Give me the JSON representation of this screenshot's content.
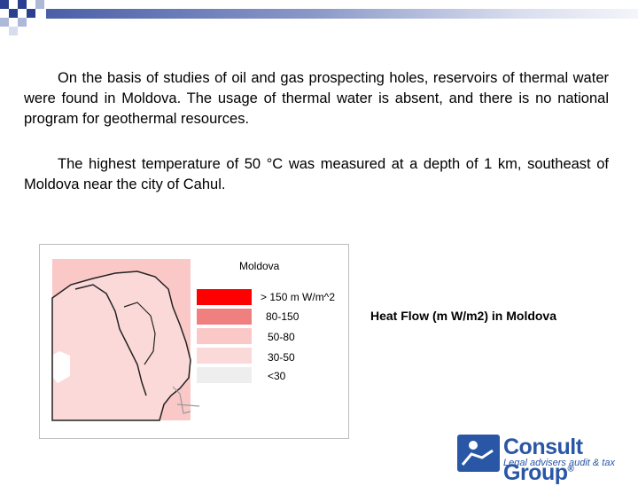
{
  "colors": {
    "accent_blue": "#2a56a6",
    "bar_dark": "#4a5fa8",
    "legend_high": "#ff0000",
    "legend_80_150": "#f08080",
    "legend_50_80": "#fbc8c8",
    "legend_30_50": "#fbd9d9",
    "legend_lt30": "#eeeeee"
  },
  "text": {
    "paragraph1": "On the basis of studies of oil and gas prospecting holes, reservoirs of thermal water were found in Moldova. The usage of thermal water is absent, and there is no national program for geothermal resources.",
    "paragraph2": "The highest temperature of 50 °C was measured at a depth of 1 km, southeast of Moldova near the city of Cahul."
  },
  "map": {
    "title": "Moldova",
    "legend": [
      {
        "label": "> 150 m W/m^2",
        "color": "#ff0000"
      },
      {
        "label": "80-150",
        "color": "#f08080"
      },
      {
        "label": "50-80",
        "color": "#fbc8c8"
      },
      {
        "label": "30-50",
        "color": "#fbd9d9"
      },
      {
        "label": "<30",
        "color": "#eeeeee"
      }
    ],
    "caption": "Heat Flow (m W/m2) in Moldova"
  },
  "logo": {
    "name": "Consult Group",
    "registered": "®",
    "tagline": "Legal advisers audit & tax"
  }
}
